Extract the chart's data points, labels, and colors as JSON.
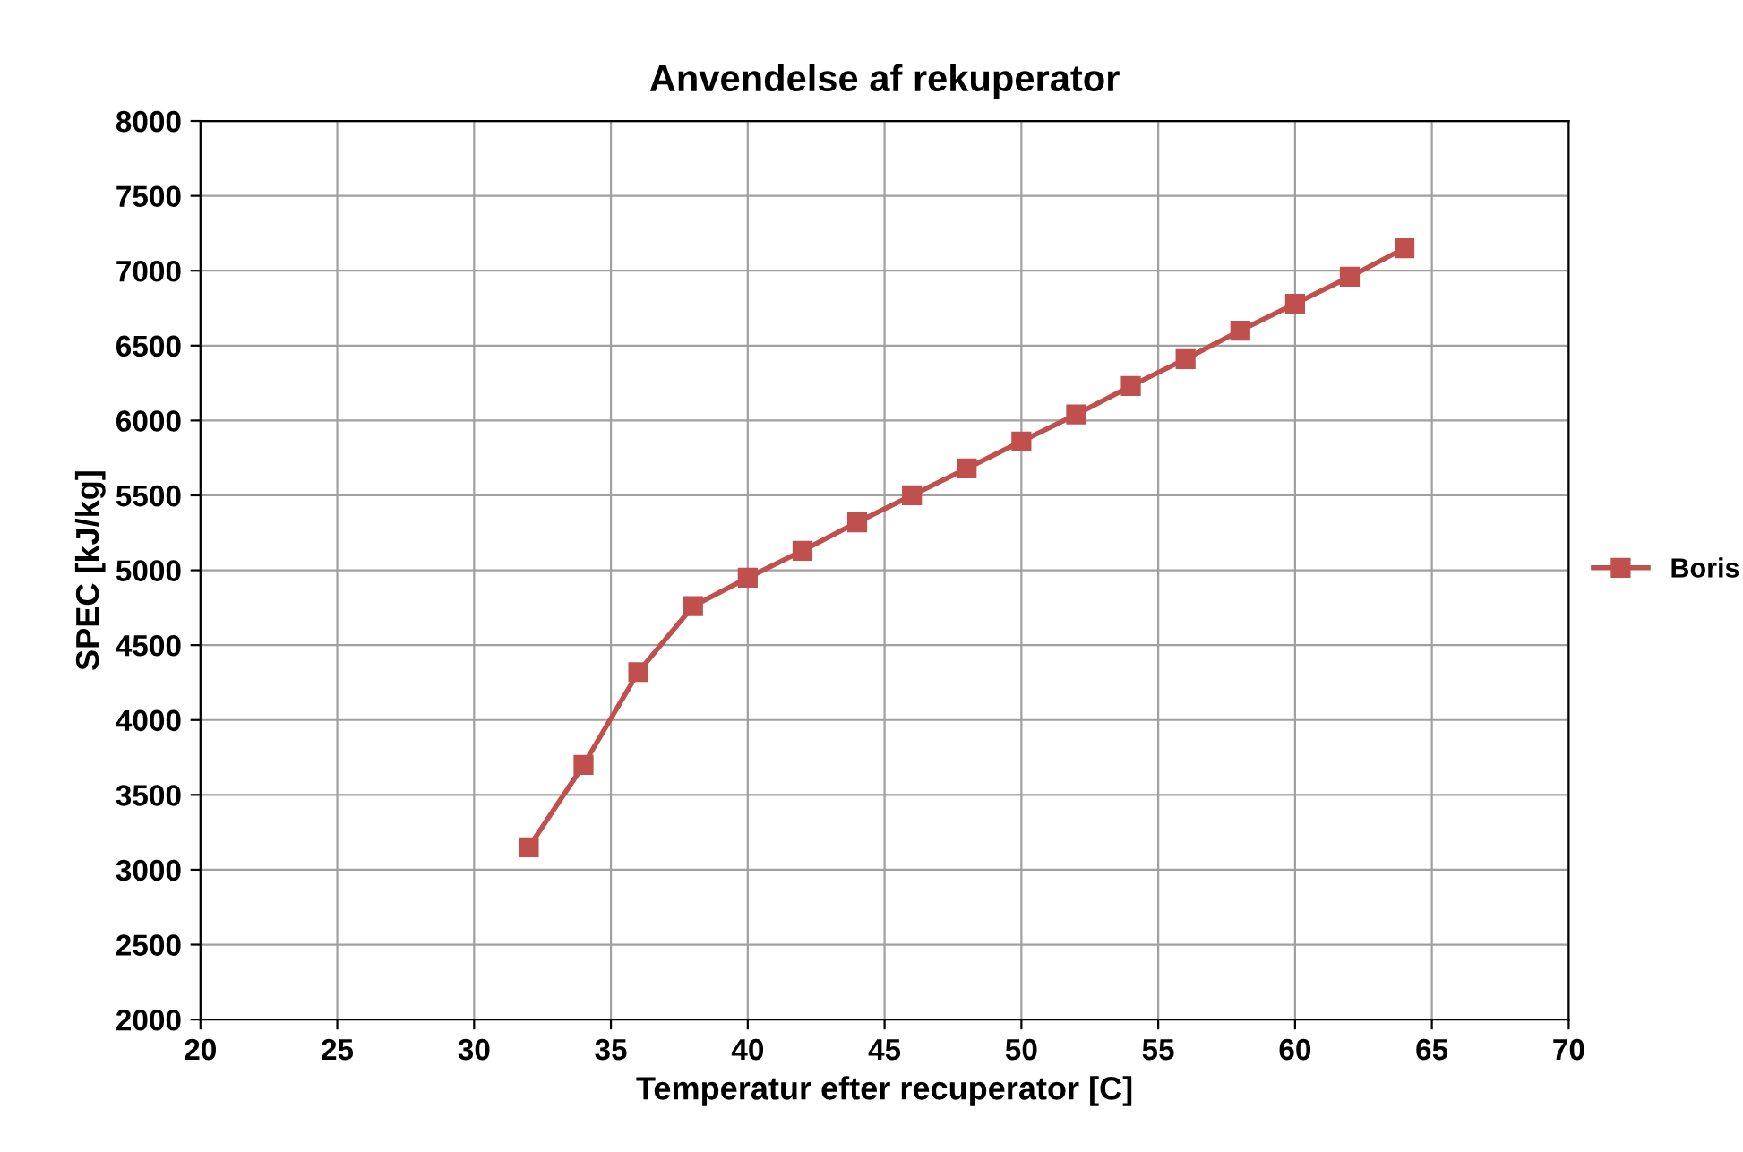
{
  "chart_data": {
    "type": "line",
    "title": "Anvendelse af rekuperator",
    "xlabel": "Temperatur efter recuperator [C]",
    "ylabel": "SPEC [kJ/kg]",
    "x": [
      32,
      34,
      36,
      38,
      40,
      42,
      44,
      46,
      48,
      50,
      52,
      54,
      56,
      58,
      60,
      62,
      64
    ],
    "series": [
      {
        "name": "Boris",
        "color": "#c0504d",
        "values": [
          3150,
          3700,
          4320,
          4760,
          4950,
          5130,
          5320,
          5500,
          5680,
          5860,
          6040,
          6230,
          6410,
          6600,
          6780,
          6960,
          7150
        ]
      }
    ],
    "xlim": [
      20,
      70
    ],
    "xticks": [
      20,
      25,
      30,
      35,
      40,
      45,
      50,
      55,
      60,
      65,
      70
    ],
    "ylim": [
      2000,
      8000
    ],
    "yticks": [
      2000,
      2500,
      3000,
      3500,
      4000,
      4500,
      5000,
      5500,
      6000,
      6500,
      7000,
      7500,
      8000
    ],
    "grid": true,
    "legend": "right",
    "marker": "square",
    "line_style": "solid"
  }
}
